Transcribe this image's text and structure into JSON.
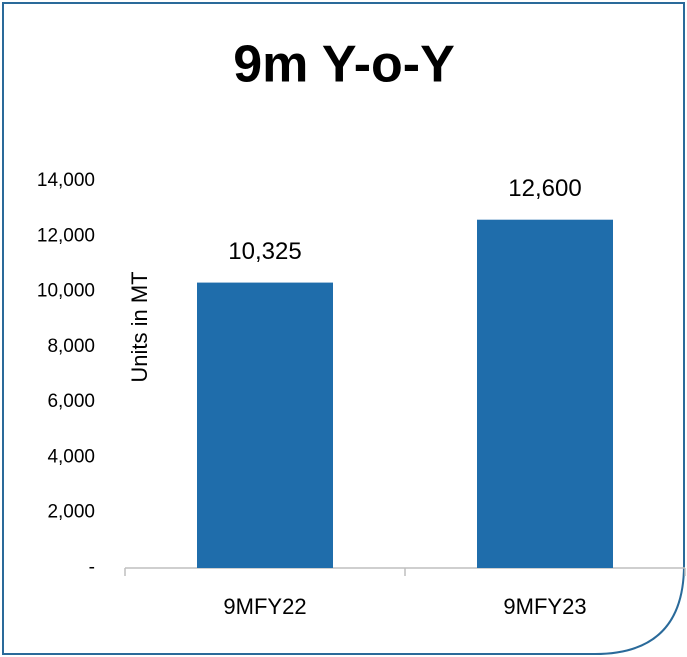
{
  "chart_data": {
    "type": "bar",
    "title": "9m Y-o-Y",
    "y_label": "Units in MT",
    "categories": [
      "9MFY22",
      "9MFY23"
    ],
    "values": [
      10325,
      12600
    ],
    "value_labels": [
      "10,325",
      "12,600"
    ],
    "color": "#1f6dab",
    "ylim": [
      0,
      14000
    ],
    "yticks": [
      {
        "value": 0,
        "label": "-"
      },
      {
        "value": 2000,
        "label": "2,000"
      },
      {
        "value": 4000,
        "label": "4,000"
      },
      {
        "value": 6000,
        "label": "6,000"
      },
      {
        "value": 8000,
        "label": "8,000"
      },
      {
        "value": 10000,
        "label": "10,000"
      },
      {
        "value": 12000,
        "label": "12,000"
      },
      {
        "value": 14000,
        "label": "14,000"
      }
    ],
    "grid": false
  }
}
